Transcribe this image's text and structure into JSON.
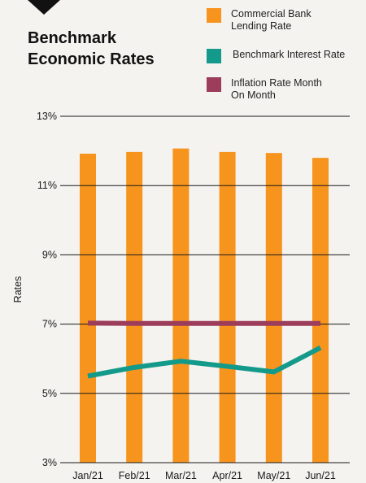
{
  "chart_data": {
    "type": "bar",
    "title": "Benchmark Economic Rates",
    "ylabel": "Rates",
    "xlabel": "",
    "categories": [
      "Jan/21",
      "Feb/21",
      "Mar/21",
      "Apr/21",
      "May/21",
      "Jun/21"
    ],
    "ylim": [
      3,
      13
    ],
    "yticks": [
      3,
      5,
      7,
      9,
      11,
      13
    ],
    "ytick_labels": [
      "3%",
      "5%",
      "7%",
      "9%",
      "11%",
      "13%"
    ],
    "grid": "horizontal",
    "legend_position": "top-right",
    "series": [
      {
        "name": "Commercial Bank Lending Rate",
        "type": "bar",
        "color": "#f7941d",
        "values": [
          11.92,
          11.97,
          12.07,
          11.97,
          11.94,
          11.8
        ]
      },
      {
        "name": "Benchmark Interest Rate",
        "type": "line",
        "color": "#149a8a",
        "values": [
          5.5,
          5.75,
          5.93,
          5.78,
          5.62,
          6.32
        ]
      },
      {
        "name": "Inflation Rate Month On Month",
        "type": "line",
        "color": "#9c3d5b",
        "values": [
          7.03,
          7.02,
          7.02,
          7.02,
          7.02,
          7.02
        ]
      }
    ]
  },
  "legend": {
    "items": [
      {
        "label_lines": [
          "Commercial Bank",
          "Lending Rate"
        ],
        "color": "#f7941d"
      },
      {
        "label_lines": [
          "Benchmark Interest Rate"
        ],
        "color": "#149a8a"
      },
      {
        "label_lines": [
          "Inflation Rate Month",
          "On Month"
        ],
        "color": "#9c3d5b"
      }
    ]
  },
  "title_lines": [
    "Benchmark",
    "Economic Rates"
  ],
  "colors": {
    "background": "#f4f3f0",
    "gridline": "#1a1a1a",
    "text": "#1a1a1a",
    "logo": "#111111"
  }
}
